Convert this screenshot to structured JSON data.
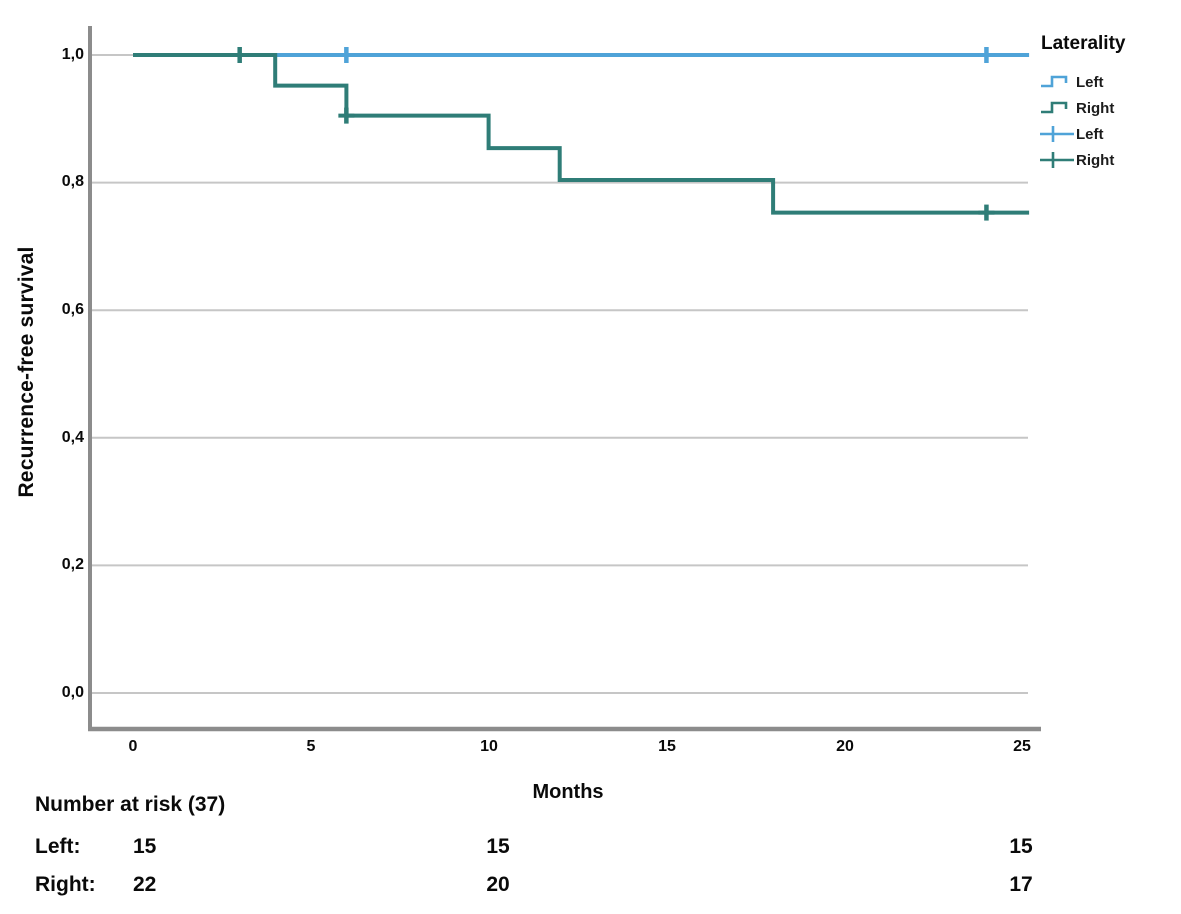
{
  "chart_data": {
    "type": "line",
    "subtype": "kaplan-meier-step",
    "title": "",
    "xlabel": "Months",
    "ylabel": "Recurrence-free survival",
    "xlim": [
      0,
      25
    ],
    "ylim": [
      0.0,
      1.0
    ],
    "grid": "horizontal-only",
    "legend_position": "top-right-outside",
    "xticks": [
      {
        "value": 0,
        "label": "0"
      },
      {
        "value": 5,
        "label": "5"
      },
      {
        "value": 10,
        "label": "10"
      },
      {
        "value": 15,
        "label": "15"
      },
      {
        "value": 20,
        "label": "20"
      },
      {
        "value": 25,
        "label": "25"
      }
    ],
    "yticks": [
      {
        "value": 1.0,
        "label": "1,0"
      },
      {
        "value": 0.8,
        "label": "0,8"
      },
      {
        "value": 0.6,
        "label": "0,6"
      },
      {
        "value": 0.4,
        "label": "0,4"
      },
      {
        "value": 0.2,
        "label": "0,2"
      },
      {
        "value": 0.0,
        "label": "0,0"
      }
    ],
    "legend": {
      "title": "Laterality",
      "entries": [
        {
          "label": "Left",
          "symbol": "step-line",
          "color": "#4fa3d8"
        },
        {
          "label": "Right",
          "symbol": "step-line",
          "color": "#2f7d77"
        },
        {
          "label": "Left",
          "symbol": "censor-plus",
          "color": "#4fa3d8"
        },
        {
          "label": "Right",
          "symbol": "censor-plus",
          "color": "#2f7d77"
        }
      ]
    },
    "series": [
      {
        "name": "Left",
        "color": "#4fa3d8",
        "steps": [
          [
            0,
            1.0
          ],
          [
            25.2,
            1.0
          ]
        ],
        "censored": [
          [
            6,
            1.0
          ],
          [
            24,
            1.0
          ]
        ]
      },
      {
        "name": "Right",
        "color": "#2f7d77",
        "steps": [
          [
            0,
            1.0
          ],
          [
            4,
            1.0
          ],
          [
            4,
            0.952
          ],
          [
            6,
            0.952
          ],
          [
            6,
            0.905
          ],
          [
            10,
            0.905
          ],
          [
            10,
            0.854
          ],
          [
            12,
            0.854
          ],
          [
            12,
            0.804
          ],
          [
            18,
            0.804
          ],
          [
            18,
            0.753
          ],
          [
            25.2,
            0.753
          ]
        ],
        "censored": [
          [
            3,
            1.0
          ],
          [
            6,
            0.905
          ],
          [
            24,
            0.753
          ]
        ]
      }
    ],
    "style": {
      "grid_color": "#c6c6c6",
      "axis_color": "#8c8c8c",
      "background": "#ffffff"
    }
  },
  "risk_table": {
    "header": "Number at risk (37)",
    "rows": [
      {
        "label": "Left:",
        "values": [
          "15",
          "15",
          "15"
        ]
      },
      {
        "label": "Right:",
        "values": [
          "22",
          "20",
          "17"
        ]
      }
    ]
  }
}
